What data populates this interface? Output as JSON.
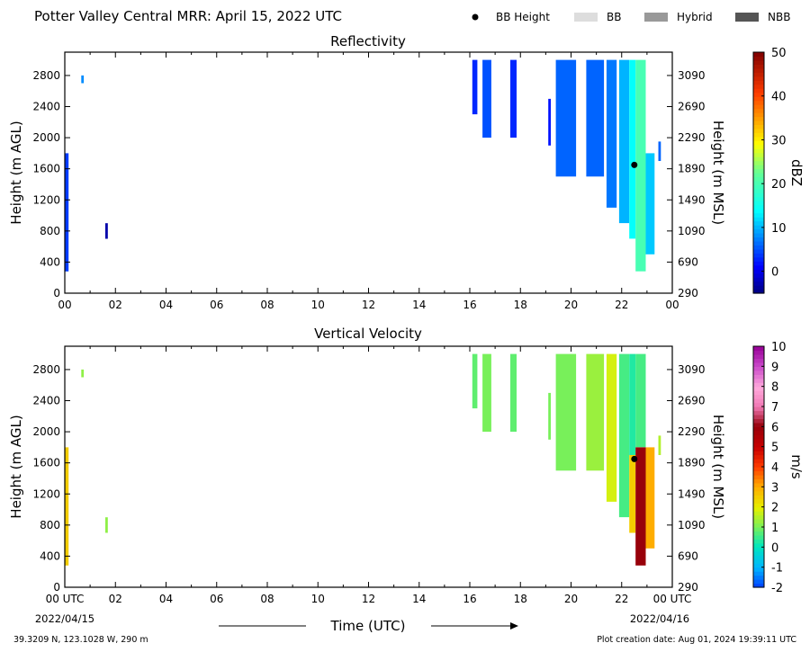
{
  "header": {
    "title": "Potter Valley Central MRR:  April 15, 2022 UTC",
    "legend": [
      {
        "label": "BB Height",
        "marker": "dot",
        "color": "#000000"
      },
      {
        "label": "BB",
        "marker": "box",
        "color": "#dddddd"
      },
      {
        "label": "Hybrid",
        "marker": "box",
        "color": "#999999"
      },
      {
        "label": "NBB",
        "marker": "box",
        "color": "#555555"
      }
    ]
  },
  "footer": {
    "location": "39.3209 N, 123.1028 W, 290 m",
    "creation": "Plot creation date: Aug 01, 2024 19:39:11 UTC",
    "time_axis_label": "Time (UTC)",
    "start_date": "2022/04/15",
    "end_date": "2022/04/16"
  },
  "chart_data": [
    {
      "type": "heatmap",
      "title": "Reflectivity",
      "ylabel": "Height (m AGL)",
      "ylabel_right": "Height (m MSL)",
      "colorbar_label": "dBZ",
      "x_ticks": [
        "00",
        "02",
        "04",
        "06",
        "08",
        "10",
        "12",
        "14",
        "16",
        "18",
        "20",
        "22",
        "00"
      ],
      "xlim_hours": [
        0,
        24
      ],
      "ylim": [
        0,
        3100
      ],
      "y_ticks": [
        0,
        400,
        800,
        1200,
        1600,
        2000,
        2400,
        2800
      ],
      "y_ticks_right": [
        290,
        690,
        1090,
        1490,
        1890,
        2290,
        2690,
        3090
      ],
      "colorbar_range": [
        -5,
        50
      ],
      "colorbar_ticks": [
        0,
        10,
        20,
        30,
        40,
        50
      ],
      "bb_height": [
        {
          "hour": 22.5,
          "height": 1650
        }
      ],
      "echo_columns": [
        {
          "start": 0.0,
          "end": 0.15,
          "bottom": 280,
          "top": 1800,
          "value": 4
        },
        {
          "start": 0.65,
          "end": 0.75,
          "bottom": 2700,
          "top": 2800,
          "value": 8
        },
        {
          "start": 1.6,
          "end": 1.7,
          "bottom": 700,
          "top": 900,
          "value": -3
        },
        {
          "start": 16.1,
          "end": 16.3,
          "bottom": 2300,
          "top": 3000,
          "value": 3
        },
        {
          "start": 16.5,
          "end": 16.85,
          "bottom": 2000,
          "top": 3000,
          "value": 5
        },
        {
          "start": 17.6,
          "end": 17.85,
          "bottom": 2000,
          "top": 3000,
          "value": 3
        },
        {
          "start": 19.1,
          "end": 19.2,
          "bottom": 1900,
          "top": 2500,
          "value": 2
        },
        {
          "start": 19.4,
          "end": 20.2,
          "bottom": 1500,
          "top": 3000,
          "value": 6
        },
        {
          "start": 20.6,
          "end": 21.3,
          "bottom": 1500,
          "top": 3000,
          "value": 6
        },
        {
          "start": 21.4,
          "end": 21.8,
          "bottom": 1100,
          "top": 3000,
          "value": 7
        },
        {
          "start": 21.9,
          "end": 22.3,
          "bottom": 900,
          "top": 3000,
          "value": 10
        },
        {
          "start": 22.3,
          "end": 22.55,
          "bottom": 700,
          "top": 3000,
          "value": 14
        },
        {
          "start": 22.55,
          "end": 22.95,
          "bottom": 280,
          "top": 3000,
          "value": 20
        },
        {
          "start": 22.95,
          "end": 23.3,
          "bottom": 500,
          "top": 1800,
          "value": 11
        },
        {
          "start": 23.45,
          "end": 23.55,
          "bottom": 1700,
          "top": 1950,
          "value": 6
        }
      ]
    },
    {
      "type": "heatmap",
      "title": "Vertical Velocity",
      "ylabel": "Height (m AGL)",
      "ylabel_right": "Height (m MSL)",
      "colorbar_label": "m/s",
      "x_ticks": [
        "00 UTC",
        "02",
        "04",
        "06",
        "08",
        "10",
        "12",
        "14",
        "16",
        "18",
        "20",
        "22",
        "00 UTC"
      ],
      "xlim_hours": [
        0,
        24
      ],
      "ylim": [
        0,
        3100
      ],
      "y_ticks": [
        0,
        400,
        800,
        1200,
        1600,
        2000,
        2400,
        2800
      ],
      "y_ticks_right": [
        290,
        690,
        1090,
        1490,
        1890,
        2290,
        2690,
        3090
      ],
      "colorbar_range": [
        -2,
        10
      ],
      "colorbar_ticks": [
        -2,
        -1,
        0,
        1,
        2,
        3,
        4,
        5,
        6,
        7,
        8,
        9,
        10
      ],
      "bb_height": [
        {
          "hour": 22.5,
          "height": 1650
        }
      ],
      "echo_columns": [
        {
          "start": 0.0,
          "end": 0.15,
          "bottom": 280,
          "top": 1800,
          "value": 2.5
        },
        {
          "start": 0.65,
          "end": 0.75,
          "bottom": 2700,
          "top": 2800,
          "value": 1.2
        },
        {
          "start": 1.6,
          "end": 1.7,
          "bottom": 700,
          "top": 900,
          "value": 1.2
        },
        {
          "start": 16.1,
          "end": 16.3,
          "bottom": 2300,
          "top": 3000,
          "value": 0.8
        },
        {
          "start": 16.5,
          "end": 16.85,
          "bottom": 2000,
          "top": 3000,
          "value": 1.0
        },
        {
          "start": 17.6,
          "end": 17.85,
          "bottom": 2000,
          "top": 3000,
          "value": 0.8
        },
        {
          "start": 19.1,
          "end": 19.2,
          "bottom": 1900,
          "top": 2500,
          "value": 1.0
        },
        {
          "start": 19.4,
          "end": 20.2,
          "bottom": 1500,
          "top": 3000,
          "value": 1.0
        },
        {
          "start": 20.6,
          "end": 21.3,
          "bottom": 1500,
          "top": 3000,
          "value": 1.3
        },
        {
          "start": 21.4,
          "end": 21.8,
          "bottom": 1100,
          "top": 3000,
          "value": 1.8
        },
        {
          "start": 21.9,
          "end": 22.3,
          "bottom": 900,
          "top": 3000,
          "value": 0.6
        },
        {
          "start": 22.3,
          "end": 22.55,
          "bottom": 1700,
          "top": 3000,
          "value": 0.3
        },
        {
          "start": 22.3,
          "end": 22.55,
          "bottom": 700,
          "top": 1700,
          "value": 2.5
        },
        {
          "start": 22.55,
          "end": 22.95,
          "bottom": 1800,
          "top": 3000,
          "value": 0.6
        },
        {
          "start": 22.55,
          "end": 22.95,
          "bottom": 280,
          "top": 1800,
          "value": 6.0
        },
        {
          "start": 22.95,
          "end": 23.3,
          "bottom": 500,
          "top": 1800,
          "value": 3.0
        },
        {
          "start": 23.45,
          "end": 23.55,
          "bottom": 1700,
          "top": 1950,
          "value": 1.5
        }
      ]
    }
  ]
}
